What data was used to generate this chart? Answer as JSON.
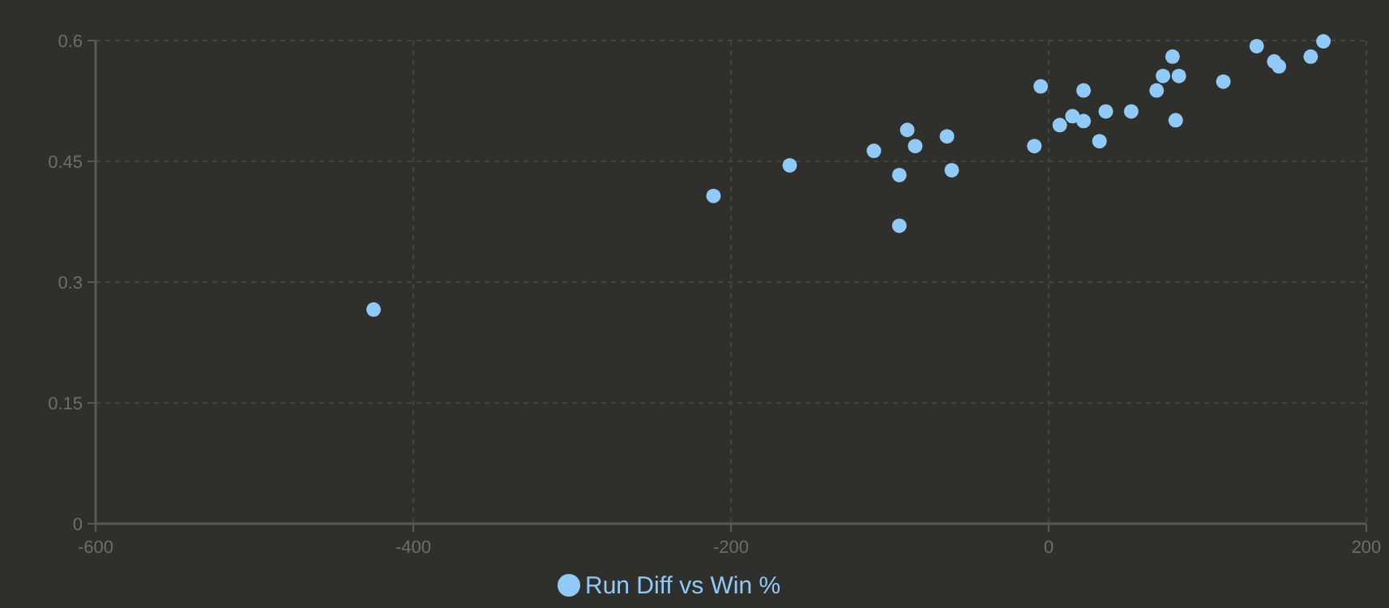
{
  "chart_data": {
    "type": "scatter",
    "series": [
      {
        "name": "Run Diff vs Win %",
        "color": "#90caf9",
        "x": [
          -425,
          -211,
          -163,
          -110,
          -94,
          -94,
          -89,
          -84,
          -64,
          -61,
          -9,
          -5,
          7,
          15,
          22,
          22,
          32,
          36,
          52,
          68,
          72,
          78,
          82,
          80,
          110,
          131,
          142,
          145,
          165,
          173
        ],
        "values": [
          0.266,
          0.407,
          0.445,
          0.463,
          0.433,
          0.37,
          0.489,
          0.469,
          0.481,
          0.439,
          0.469,
          0.543,
          0.495,
          0.506,
          0.5,
          0.538,
          0.475,
          0.512,
          0.512,
          0.538,
          0.556,
          0.58,
          0.556,
          0.501,
          0.549,
          0.593,
          0.574,
          0.568,
          0.58,
          0.599
        ]
      }
    ],
    "xlim": [
      -600,
      200
    ],
    "xticks": [
      -600,
      -400,
      -200,
      0,
      200
    ],
    "ylim": [
      0,
      0.6
    ],
    "yticks": [
      0,
      0.15,
      0.3,
      0.45,
      0.6
    ],
    "grid": true,
    "legend": "bottom",
    "marker": "circle"
  }
}
